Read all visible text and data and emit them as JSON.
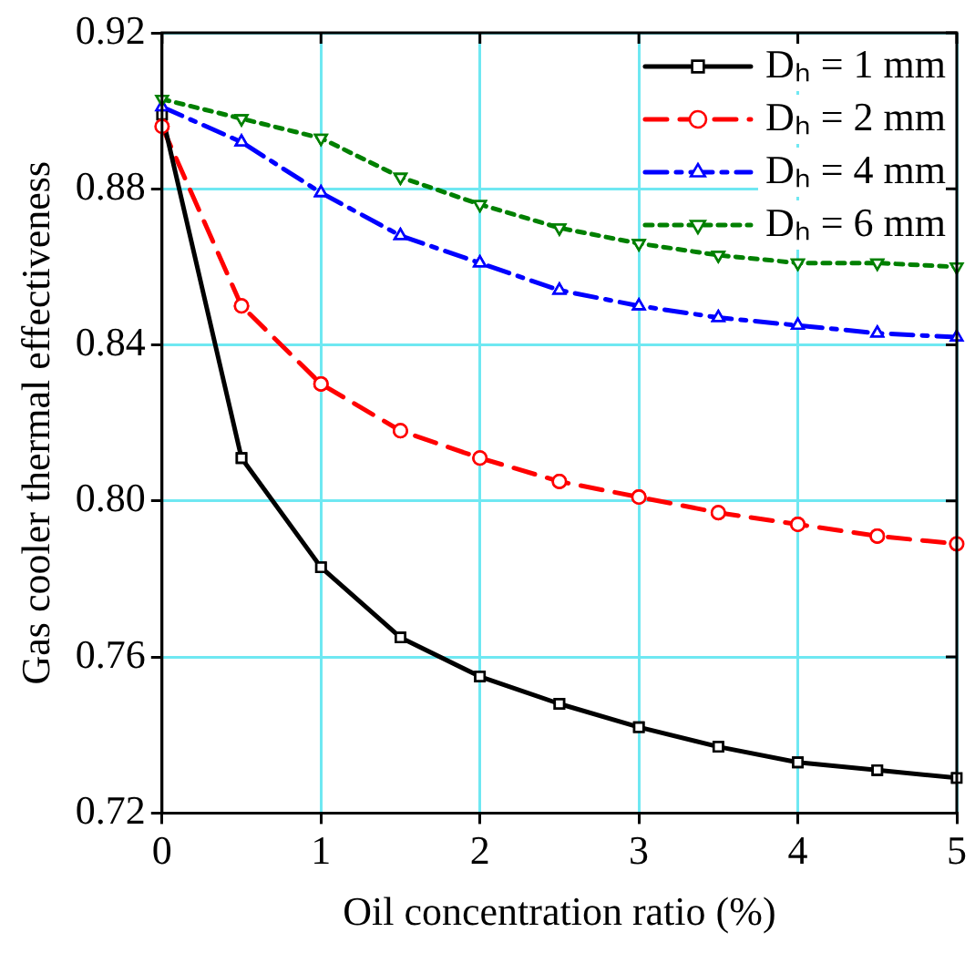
{
  "chart_data": {
    "type": "line",
    "xlabel": "Oil concentration ratio (%)",
    "ylabel": "Gas cooler thermal effectiveness",
    "x": [
      0,
      0.5,
      1,
      1.5,
      2,
      2.5,
      3,
      3.5,
      4,
      4.5,
      5
    ],
    "series": [
      {
        "name": "Dₕ = 1 mm",
        "color": "#000000",
        "marker": "square",
        "line_style": "solid",
        "values": [
          0.899,
          0.811,
          0.783,
          0.765,
          0.755,
          0.748,
          0.742,
          0.737,
          0.733,
          0.731,
          0.729
        ]
      },
      {
        "name": "Dₕ = 2 mm",
        "color": "#ff0000",
        "marker": "circle",
        "line_style": "dashed",
        "values": [
          0.896,
          0.85,
          0.83,
          0.818,
          0.811,
          0.805,
          0.801,
          0.797,
          0.794,
          0.791,
          0.789
        ]
      },
      {
        "name": "Dₕ = 4 mm",
        "color": "#0000ff",
        "marker": "triangle",
        "line_style": "dashdot",
        "values": [
          0.901,
          0.892,
          0.879,
          0.868,
          0.861,
          0.854,
          0.85,
          0.847,
          0.845,
          0.843,
          0.842
        ]
      },
      {
        "name": "Dₕ = 6 mm",
        "color": "#008000",
        "marker": "triangle-down",
        "line_style": "dotted",
        "values": [
          0.903,
          0.898,
          0.893,
          0.883,
          0.876,
          0.87,
          0.866,
          0.863,
          0.861,
          0.861,
          0.86
        ]
      }
    ],
    "xlim": [
      0,
      5
    ],
    "xticks": [
      0,
      1,
      2,
      3,
      4,
      5
    ],
    "ylim": [
      0.72,
      0.92
    ],
    "yticks": [
      {
        "value": 0.72,
        "label": "0.72"
      },
      {
        "value": 0.76,
        "label": "0.76"
      },
      {
        "value": 0.8,
        "label": "0.80"
      },
      {
        "value": 0.84,
        "label": "0.84"
      },
      {
        "value": 0.88,
        "label": "0.88"
      },
      {
        "value": 0.92,
        "label": "0.92"
      }
    ],
    "grid": true,
    "legend": "top right"
  }
}
